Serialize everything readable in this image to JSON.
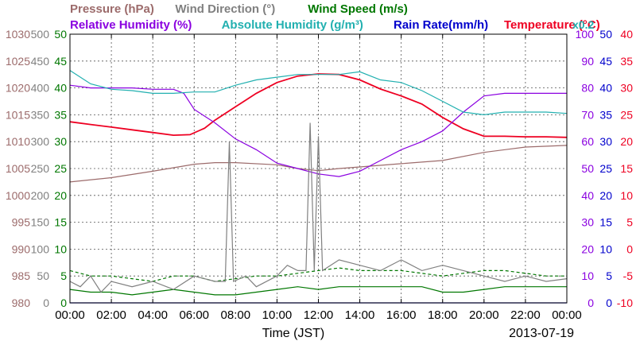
{
  "chart_data": {
    "type": "line",
    "date": "2013-07-19",
    "xlabel": "Time (JST)",
    "x_ticks": [
      "00:00",
      "02:00",
      "04:00",
      "06:00",
      "08:00",
      "10:00",
      "12:00",
      "14:00",
      "16:00",
      "18:00",
      "20:00",
      "22:00",
      "00:00"
    ],
    "x_range_hours": [
      0,
      24
    ],
    "grid": true,
    "legend_top": [
      {
        "label": "Pressure (hPa)",
        "color": "#9c6b6b"
      },
      {
        "label": "Wind Direction (°)",
        "color": "#808080"
      },
      {
        "label": "Wind Speed (m/s)",
        "color": "#007700"
      }
    ],
    "legend_bottom": [
      {
        "label": "Relative Humidity (%)",
        "color": "#8a00e0"
      },
      {
        "label": "Absolute Humidity (g/m³)",
        "color": "#22b0b0"
      },
      {
        "label": "Rain Rate(mm/h)",
        "color": "#0000cc"
      },
      {
        "label": "Temperature (°C)",
        "color": "#ee0022"
      },
      {
        "label": "x0.2",
        "color": "#22b0b0"
      }
    ],
    "axes": {
      "pressure": {
        "color": "#9c6b6b",
        "ticks": [
          "980",
          "985",
          "990",
          "995",
          "1000",
          "1005",
          "1010",
          "1015",
          "1020",
          "1025",
          "1030"
        ],
        "range": [
          980,
          1030
        ]
      },
      "wind_direction": {
        "color": "#808080",
        "ticks": [
          "0",
          "50",
          "100",
          "150",
          "200",
          "250",
          "300",
          "350",
          "400",
          "450",
          "500"
        ],
        "range": [
          0,
          500
        ]
      },
      "wind_speed": {
        "color": "#007700",
        "ticks": [
          "0",
          "5",
          "10",
          "15",
          "20",
          "25",
          "30",
          "35",
          "40",
          "45",
          "50"
        ],
        "range": [
          0,
          50
        ]
      },
      "humidity": {
        "color": "#8a00e0",
        "ticks": [
          "0",
          "10",
          "20",
          "30",
          "40",
          "50",
          "60",
          "70",
          "80",
          "90",
          "100"
        ],
        "range": [
          0,
          100
        ]
      },
      "rain_rate": {
        "color": "#0000cc",
        "ticks": [
          "0",
          "5",
          "10",
          "15",
          "20",
          "25",
          "30",
          "35",
          "40",
          "45",
          "50"
        ],
        "range": [
          0,
          50
        ]
      },
      "temperature": {
        "color": "#ee0022",
        "ticks": [
          "-10",
          "-5",
          "0",
          "5",
          "10",
          "15",
          "20",
          "25",
          "30",
          "35",
          "40"
        ],
        "range": [
          -10,
          40
        ]
      }
    },
    "series": [
      {
        "name": "Pressure (hPa)",
        "axis": "pressure",
        "color": "#9c6b6b",
        "points": [
          [
            0,
            1002.5
          ],
          [
            2,
            1003.3
          ],
          [
            4,
            1004.5
          ],
          [
            6,
            1005.8
          ],
          [
            7,
            1006.1
          ],
          [
            8,
            1006.1
          ],
          [
            10,
            1005.7
          ],
          [
            11,
            1005
          ],
          [
            12,
            1004.6
          ],
          [
            13,
            1005
          ],
          [
            14,
            1005.3
          ],
          [
            16,
            1005.9
          ],
          [
            18,
            1006.5
          ],
          [
            20,
            1008
          ],
          [
            22,
            1009
          ],
          [
            24,
            1009.3
          ]
        ]
      },
      {
        "name": "Temperature (°C)",
        "axis": "temperature",
        "color": "#ee0022",
        "points": [
          [
            0,
            23.7
          ],
          [
            1,
            23.2
          ],
          [
            2,
            22.7
          ],
          [
            3,
            22.2
          ],
          [
            4,
            21.7
          ],
          [
            5,
            21.2
          ],
          [
            5.8,
            21.3
          ],
          [
            6.5,
            22.5
          ],
          [
            7,
            24
          ],
          [
            8,
            26.5
          ],
          [
            9,
            29
          ],
          [
            10,
            31
          ],
          [
            11,
            32.2
          ],
          [
            12,
            32.6
          ],
          [
            13,
            32.5
          ],
          [
            14,
            31.5
          ],
          [
            15,
            29.8
          ],
          [
            16,
            28.5
          ],
          [
            17,
            27
          ],
          [
            18,
            24.5
          ],
          [
            19,
            22.4
          ],
          [
            20,
            21
          ],
          [
            21,
            21
          ],
          [
            22,
            20.9
          ],
          [
            23,
            20.9
          ],
          [
            24,
            20.8
          ]
        ]
      },
      {
        "name": "Relative Humidity (%)",
        "axis": "humidity",
        "color": "#8a00e0",
        "points": [
          [
            0,
            81
          ],
          [
            1,
            80
          ],
          [
            3,
            80
          ],
          [
            4,
            79.5
          ],
          [
            5,
            79.5
          ],
          [
            5.5,
            78
          ],
          [
            6,
            72
          ],
          [
            7,
            67
          ],
          [
            8,
            61
          ],
          [
            9,
            57
          ],
          [
            10,
            52
          ],
          [
            11,
            50
          ],
          [
            12,
            48
          ],
          [
            13,
            47
          ],
          [
            14,
            49
          ],
          [
            15,
            53
          ],
          [
            16,
            57
          ],
          [
            17,
            60
          ],
          [
            18,
            64
          ],
          [
            19,
            71
          ],
          [
            20,
            77
          ],
          [
            21,
            78
          ],
          [
            22,
            78
          ],
          [
            23,
            78
          ],
          [
            24,
            78
          ]
        ]
      },
      {
        "name": "Absolute Humidity (g/m³)",
        "axis": "humidity",
        "color": "#22b0b0",
        "points": [
          [
            0,
            86.5
          ],
          [
            1,
            81.5
          ],
          [
            2,
            79.5
          ],
          [
            3,
            79
          ],
          [
            4,
            78
          ],
          [
            5,
            78
          ],
          [
            6,
            78.5
          ],
          [
            7,
            78.5
          ],
          [
            8,
            81
          ],
          [
            9,
            83
          ],
          [
            10,
            84
          ],
          [
            11,
            85
          ],
          [
            12,
            85
          ],
          [
            13,
            85
          ],
          [
            14,
            86
          ],
          [
            15,
            83
          ],
          [
            16,
            82
          ],
          [
            17,
            79
          ],
          [
            18,
            75
          ],
          [
            19,
            71
          ],
          [
            20,
            70
          ],
          [
            21,
            71
          ],
          [
            22,
            71
          ],
          [
            23,
            71
          ],
          [
            24,
            70.5
          ]
        ]
      },
      {
        "name": "Wind Speed (m/s)",
        "axis": "wind_speed",
        "color": "#007700",
        "style": "solid",
        "points": [
          [
            0,
            2.5
          ],
          [
            1,
            2
          ],
          [
            2,
            2
          ],
          [
            3,
            1.5
          ],
          [
            4,
            2
          ],
          [
            5,
            2.5
          ],
          [
            6,
            2
          ],
          [
            7,
            1.5
          ],
          [
            8,
            1.5
          ],
          [
            9,
            2
          ],
          [
            10,
            2.5
          ],
          [
            11,
            3
          ],
          [
            12,
            2.5
          ],
          [
            13,
            3
          ],
          [
            14,
            3
          ],
          [
            15,
            3
          ],
          [
            16,
            3
          ],
          [
            17,
            3
          ],
          [
            18,
            2
          ],
          [
            19,
            2
          ],
          [
            20,
            2.5
          ],
          [
            21,
            3
          ],
          [
            22,
            3
          ],
          [
            23,
            3
          ],
          [
            24,
            3
          ]
        ]
      },
      {
        "name": "Wind Speed (m/s)",
        "axis": "wind_speed",
        "color": "#007700",
        "style": "dashed",
        "points": [
          [
            0,
            6
          ],
          [
            1,
            5
          ],
          [
            2,
            5
          ],
          [
            3,
            4.5
          ],
          [
            4,
            4
          ],
          [
            5,
            5
          ],
          [
            6,
            5
          ],
          [
            7,
            4
          ],
          [
            8,
            4.5
          ],
          [
            9,
            5
          ],
          [
            10,
            5
          ],
          [
            11,
            5.5
          ],
          [
            12,
            6
          ],
          [
            13,
            6.5
          ],
          [
            14,
            6
          ],
          [
            15,
            6
          ],
          [
            16,
            6
          ],
          [
            17,
            5.5
          ],
          [
            18,
            5
          ],
          [
            19,
            5.5
          ],
          [
            20,
            6
          ],
          [
            21,
            6
          ],
          [
            22,
            5.5
          ],
          [
            23,
            5
          ],
          [
            24,
            5
          ]
        ]
      },
      {
        "name": "Wind Direction (°)",
        "axis": "wind_direction",
        "color": "#808080",
        "points": [
          [
            0,
            40
          ],
          [
            0.5,
            30
          ],
          [
            1,
            50
          ],
          [
            1.5,
            20
          ],
          [
            2,
            40
          ],
          [
            3,
            30
          ],
          [
            4,
            40
          ],
          [
            5,
            25
          ],
          [
            6,
            50
          ],
          [
            7,
            40
          ],
          [
            7.5,
            40
          ],
          [
            7.7,
            300
          ],
          [
            7.9,
            40
          ],
          [
            8.5,
            50
          ],
          [
            9,
            30
          ],
          [
            10,
            50
          ],
          [
            10.5,
            70
          ],
          [
            11,
            60
          ],
          [
            11.4,
            60
          ],
          [
            11.6,
            335
          ],
          [
            11.8,
            60
          ],
          [
            12,
            310
          ],
          [
            12.2,
            60
          ],
          [
            13,
            80
          ],
          [
            14,
            70
          ],
          [
            15,
            60
          ],
          [
            16,
            80
          ],
          [
            17,
            60
          ],
          [
            18,
            70
          ],
          [
            19,
            60
          ],
          [
            20,
            50
          ],
          [
            21,
            40
          ],
          [
            22,
            50
          ],
          [
            23,
            40
          ],
          [
            24,
            45
          ]
        ]
      },
      {
        "name": "Rain Rate(mm/h)",
        "axis": "rain_rate",
        "color": "#0000cc",
        "points": [
          [
            0,
            0
          ],
          [
            24,
            0
          ]
        ]
      }
    ]
  }
}
